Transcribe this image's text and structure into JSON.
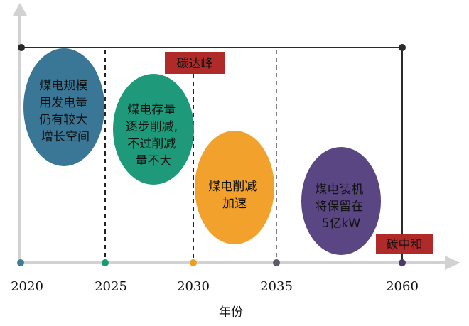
{
  "axis": {
    "title": "年份",
    "ticks": [
      {
        "label": "2020",
        "color": "#3f7f93"
      },
      {
        "label": "2025",
        "color": "#1a9a74"
      },
      {
        "label": "2030",
        "color": "#e8a020"
      },
      {
        "label": "2035",
        "color": "#5e5a6e"
      },
      {
        "label": "2060",
        "color": "#4a3a6a"
      }
    ]
  },
  "phases": [
    {
      "lines": [
        "煤电规模",
        "用发电量",
        "仍有较大",
        "增长空间"
      ],
      "color": "#3a7696"
    },
    {
      "lines": [
        "煤电存量",
        "逐步削减,",
        "不过削减",
        "量不大"
      ],
      "color": "#1e9a7a"
    },
    {
      "lines": [
        "煤电削减",
        "加速"
      ],
      "color": "#f2a22c"
    },
    {
      "lines": [
        "煤电装机",
        "将保留在",
        "5亿kW"
      ],
      "color": "#5a4682"
    }
  ],
  "milestones": {
    "peak_label": "碳达峰",
    "neutral_label": "碳中和",
    "tag_color": "#b02a2a"
  },
  "colors": {
    "axis": "#d2d2d2",
    "timeline": "#2a2a2a"
  }
}
